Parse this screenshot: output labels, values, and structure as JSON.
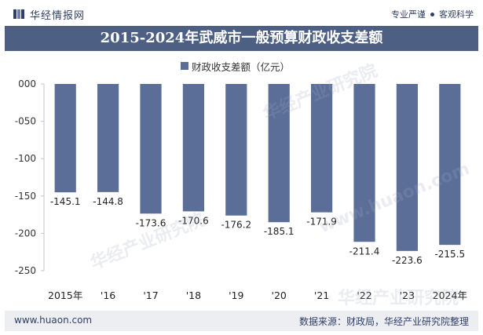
{
  "header": {
    "brand_name": "华经情报网",
    "slogan_left": "专业严谨",
    "slogan_right": "客观科学"
  },
  "colors": {
    "bar": "#5b6e98",
    "title_band": "#4e5f84",
    "text_dark": "#2f3f66"
  },
  "watermarks": [
    "华经产业研究院",
    "www.huaon.com"
  ],
  "chart_data": {
    "type": "bar",
    "title": "2015-2024年武威市一般预算财政收支差额",
    "categories": [
      "2015年",
      "'16",
      "'17",
      "'18",
      "'19",
      "'20",
      "'21",
      "'22",
      "'23",
      "2024年"
    ],
    "series": [
      {
        "name": "财政收支差额（亿元）",
        "values": [
          -145.1,
          -144.8,
          -173.6,
          -170.6,
          -176.2,
          -185.1,
          -171.9,
          -211.4,
          -223.6,
          -215.5
        ],
        "labels": [
          "-145.1",
          "-144.8",
          "-173.6",
          "-170.6",
          "-176.2",
          "-185.1",
          "-171.9",
          "-211.4",
          "-223.6",
          "-215.5"
        ]
      }
    ],
    "y_ticks": [
      "000",
      "-050",
      "-100",
      "-150",
      "-200",
      "-250"
    ],
    "ylim": [
      -250,
      0
    ],
    "grid": false,
    "legend_position": "top-center"
  },
  "footer": {
    "url": "www.huaon.com",
    "source": "数据来源：财政局，华经产业研究院整理"
  }
}
